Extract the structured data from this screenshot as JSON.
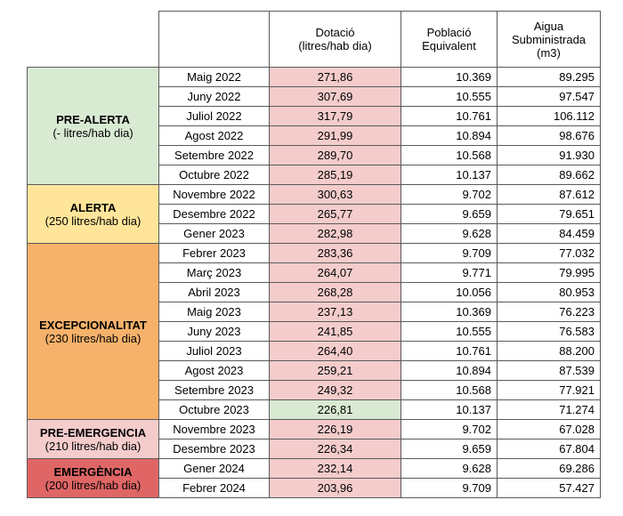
{
  "headers": {
    "dotacio_line1": "Dotació",
    "dotacio_line2": "(litres/hab dia)",
    "poblacio_line1": "Població",
    "poblacio_line2": "Equivalent",
    "aigua_line1": "Aigua",
    "aigua_line2": "Subministrada",
    "aigua_line3": "(m3)"
  },
  "colors": {
    "pre_alerta": "#d9ead3",
    "alerta": "#ffe599",
    "excepcionalitat": "#f6b26b",
    "pre_emergencia": "#f4cccc",
    "emergencia": "#e06666",
    "dotacio_cell": "#f4cccc",
    "dotacio_lowest": "#d9ead3"
  },
  "phases": [
    {
      "name": "PRE-ALERTA",
      "desc": "(- litres/hab dia)",
      "color": "#d9ead3",
      "rows": [
        {
          "month": "Maig 2022",
          "dotacio": "271,86",
          "poblacio": "10.369",
          "aigua": "89.295"
        },
        {
          "month": "Juny 2022",
          "dotacio": "307,69",
          "poblacio": "10.555",
          "aigua": "97.547"
        },
        {
          "month": "Juliol 2022",
          "dotacio": "317,79",
          "poblacio": "10.761",
          "aigua": "106.112"
        },
        {
          "month": "Agost 2022",
          "dotacio": "291,99",
          "poblacio": "10.894",
          "aigua": "98.676"
        },
        {
          "month": "Setembre 2022",
          "dotacio": "289,70",
          "poblacio": "10.568",
          "aigua": "91.930"
        },
        {
          "month": "Octubre 2022",
          "dotacio": "285,19",
          "poblacio": "10.137",
          "aigua": "89.662"
        }
      ]
    },
    {
      "name": "ALERTA",
      "desc": "(250 litres/hab dia)",
      "color": "#ffe599",
      "rows": [
        {
          "month": "Novembre 2022",
          "dotacio": "300,63",
          "poblacio": "9.702",
          "aigua": "87.612"
        },
        {
          "month": "Desembre 2022",
          "dotacio": "265,77",
          "poblacio": "9.659",
          "aigua": "79.651"
        },
        {
          "month": "Gener 2023",
          "dotacio": "282,98",
          "poblacio": "9.628",
          "aigua": "84.459"
        }
      ]
    },
    {
      "name": "EXCEPCIONALITAT",
      "desc": "(230 litres/hab dia)",
      "color": "#f6b26b",
      "rows": [
        {
          "month": "Febrer 2023",
          "dotacio": "283,36",
          "poblacio": "9.709",
          "aigua": "77.032"
        },
        {
          "month": "Març 2023",
          "dotacio": "264,07",
          "poblacio": "9.771",
          "aigua": "79.995"
        },
        {
          "month": "Abril 2023",
          "dotacio": "268,28",
          "poblacio": "10.056",
          "aigua": "80.953"
        },
        {
          "month": "Maig 2023",
          "dotacio": "237,13",
          "poblacio": "10.369",
          "aigua": "76.223"
        },
        {
          "month": "Juny 2023",
          "dotacio": "241,85",
          "poblacio": "10.555",
          "aigua": "76.583"
        },
        {
          "month": "Juliol 2023",
          "dotacio": "264,40",
          "poblacio": "10.761",
          "aigua": "88.200"
        },
        {
          "month": "Agost 2023",
          "dotacio": "259,21",
          "poblacio": "10.894",
          "aigua": "87.539"
        },
        {
          "month": "Setembre 2023",
          "dotacio": "249,32",
          "poblacio": "10.568",
          "aigua": "77.921"
        },
        {
          "month": "Octubre 2023",
          "dotacio": "226,81",
          "poblacio": "10.137",
          "aigua": "71.274",
          "highlight": true
        }
      ]
    },
    {
      "name": "PRE-EMERGENCIA",
      "desc": "(210 litres/hab dia)",
      "color": "#f4cccc",
      "rows": [
        {
          "month": "Novembre 2023",
          "dotacio": "226,19",
          "poblacio": "9.702",
          "aigua": "67.028"
        },
        {
          "month": "Desembre 2023",
          "dotacio": "226,34",
          "poblacio": "9.659",
          "aigua": "67.804"
        }
      ]
    },
    {
      "name": "EMERGÈNCIA",
      "desc": "(200 litres/hab dia)",
      "color": "#e06666",
      "rows": [
        {
          "month": "Gener 2024",
          "dotacio": "232,14",
          "poblacio": "9.628",
          "aigua": "69.286"
        },
        {
          "month": "Febrer 2024",
          "dotacio": "203,96",
          "poblacio": "9.709",
          "aigua": "57.427"
        }
      ]
    }
  ]
}
